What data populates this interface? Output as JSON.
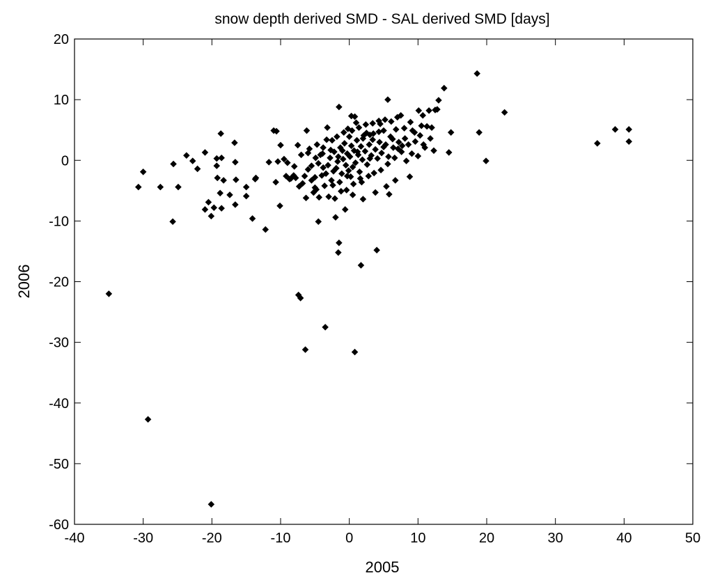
{
  "chart_data": {
    "type": "scatter",
    "title": "snow depth derived SMD - SAL derived SMD [days]",
    "xlabel": "2005",
    "ylabel": "2006",
    "xlim": [
      -40,
      50
    ],
    "ylim": [
      -60,
      20
    ],
    "x_ticks": [
      -40,
      -30,
      -20,
      -10,
      0,
      10,
      20,
      30,
      40,
      50
    ],
    "y_ticks": [
      -60,
      -50,
      -40,
      -30,
      -20,
      -10,
      0,
      10,
      20
    ],
    "x_tick_labels": [
      "-40",
      "-30",
      "-20",
      "-10",
      "0",
      "10",
      "20",
      "30",
      "40",
      "50"
    ],
    "y_tick_labels": [
      "-60",
      "-50",
      "-40",
      "-30",
      "-20",
      "-10",
      "0",
      "10",
      "20"
    ],
    "grid": false,
    "marker": "diamond",
    "marker_color": "#000000",
    "series": [
      {
        "points": [
          [
            -35,
            -22
          ],
          [
            -29.3,
            -42.7
          ],
          [
            -20.1,
            -56.7
          ],
          [
            -30.7,
            -4.4
          ],
          [
            -30,
            -1.9
          ],
          [
            -27.5,
            -4.4
          ],
          [
            -25.6,
            -0.6
          ],
          [
            -25.7,
            -10.1
          ],
          [
            -24.9,
            -4.4
          ],
          [
            -23.7,
            0.8
          ],
          [
            -22.8,
            -0.1
          ],
          [
            -22.1,
            -1.4
          ],
          [
            -21,
            1.3
          ],
          [
            -21,
            -8.1
          ],
          [
            -20.5,
            -6.9
          ],
          [
            -20.1,
            -9.2
          ],
          [
            -19.7,
            -7.8
          ],
          [
            -19.3,
            0.3
          ],
          [
            -19.3,
            -0.9
          ],
          [
            -19.2,
            -2.9
          ],
          [
            -18.8,
            -5.4
          ],
          [
            -18.7,
            4.4
          ],
          [
            -18.6,
            0.4
          ],
          [
            -18.6,
            -7.9
          ],
          [
            -18.3,
            -3.3
          ],
          [
            -17.4,
            -5.7
          ],
          [
            -16.7,
            2.9
          ],
          [
            -16.6,
            -0.3
          ],
          [
            -16.5,
            -3.2
          ],
          [
            -16.6,
            -7.3
          ],
          [
            -15,
            -4.4
          ],
          [
            -15,
            -5.9
          ],
          [
            -14.1,
            -9.6
          ],
          [
            -13.7,
            -3.1
          ],
          [
            -13.6,
            -2.9
          ],
          [
            -12.2,
            -11.4
          ],
          [
            -11.7,
            -0.3
          ],
          [
            -11,
            4.9
          ],
          [
            -10.6,
            4.8
          ],
          [
            -10.7,
            -3.6
          ],
          [
            -10.1,
            -7.5
          ],
          [
            -10,
            2.5
          ],
          [
            -10.4,
            -0.2
          ],
          [
            -9.5,
            0.2
          ],
          [
            -9,
            -0.4
          ],
          [
            -8.5,
            -3
          ],
          [
            -8.1,
            -2.5
          ],
          [
            -7.5,
            2.5
          ],
          [
            -7.3,
            -4.3
          ],
          [
            -7.4,
            -22.2
          ],
          [
            -7.1,
            -22.7
          ],
          [
            -6.5,
            -2.6
          ],
          [
            -6.2,
            4.9
          ],
          [
            -6.4,
            -31.2
          ],
          [
            -6.3,
            -6.2
          ],
          [
            -6,
            1.2
          ],
          [
            -5.5,
            -0.9
          ],
          [
            -5,
            -4.5
          ],
          [
            -4.5,
            -10.1
          ],
          [
            -4,
            -2.5
          ],
          [
            -3.8,
            2.1
          ],
          [
            -3.5,
            -27.5
          ],
          [
            -3.2,
            5.4
          ],
          [
            -3,
            -6
          ],
          [
            -2.5,
            3.3
          ],
          [
            -2.3,
            -1.8
          ],
          [
            -2,
            -9.4
          ],
          [
            -1.7,
            -0.2
          ],
          [
            -1.5,
            8.8
          ],
          [
            -1.5,
            -13.6
          ],
          [
            -1.6,
            -15.2
          ],
          [
            -1.2,
            -5.1
          ],
          [
            -1,
            1.6
          ],
          [
            -0.6,
            -8.1
          ],
          [
            -0.3,
            -2.6
          ],
          [
            0,
            3.9
          ],
          [
            0.3,
            7.3
          ],
          [
            0.8,
            -31.6
          ],
          [
            0.8,
            7.2
          ],
          [
            0.5,
            -5.7
          ],
          [
            1.2,
            1.4
          ],
          [
            1.7,
            -17.3
          ],
          [
            1.6,
            -3
          ],
          [
            2,
            -6.4
          ],
          [
            2.5,
            4.5
          ],
          [
            3,
            0.3
          ],
          [
            3.4,
            3.4
          ],
          [
            3.8,
            -5.3
          ],
          [
            4,
            -14.8
          ],
          [
            4.5,
            6
          ],
          [
            5,
            2.2
          ],
          [
            5.4,
            -4.3
          ],
          [
            5.6,
            10
          ],
          [
            5.8,
            -5.6
          ],
          [
            6.3,
            3.5
          ],
          [
            6.7,
            -3.3
          ],
          [
            7.1,
            1.9
          ],
          [
            7.5,
            7.4
          ],
          [
            8,
            5.3
          ],
          [
            8.3,
            -0.1
          ],
          [
            8.8,
            -2.7
          ],
          [
            9.5,
            4.6
          ],
          [
            10,
            0.7
          ],
          [
            10.1,
            8.2
          ],
          [
            10.5,
            5.7
          ],
          [
            11,
            2.1
          ],
          [
            11.6,
            8.2
          ],
          [
            12,
            5.4
          ],
          [
            12.5,
            8.3
          ],
          [
            13,
            9.9
          ],
          [
            13.8,
            11.9
          ],
          [
            14.5,
            1.3
          ],
          [
            14.8,
            4.6
          ],
          [
            18.6,
            14.3
          ],
          [
            18.9,
            4.6
          ],
          [
            19.9,
            -0.1
          ],
          [
            22.6,
            7.9
          ],
          [
            36.1,
            2.8
          ],
          [
            38.7,
            5.1
          ],
          [
            40.7,
            5.1
          ],
          [
            40.7,
            3.1
          ],
          [
            -6,
            -1.5
          ],
          [
            -5.5,
            -3.3
          ],
          [
            -5,
            -2.8
          ],
          [
            -4.5,
            -0.5
          ],
          [
            -4.2,
            0.9
          ],
          [
            -3.8,
            -1.2
          ],
          [
            -3.4,
            -2.2
          ],
          [
            -3.1,
            -0.8
          ],
          [
            -2.8,
            0.4
          ],
          [
            -2.6,
            -3.3
          ],
          [
            -2.2,
            1.4
          ],
          [
            -1.9,
            -1.3
          ],
          [
            -1.6,
            0.6
          ],
          [
            -1.3,
            2.1
          ],
          [
            -1.1,
            -2.2
          ],
          [
            -0.9,
            0.2
          ],
          [
            -0.7,
            2.8
          ],
          [
            -0.5,
            -0.8
          ],
          [
            -0.3,
            1.1
          ],
          [
            -0.1,
            -1.7
          ],
          [
            0.1,
            0.6
          ],
          [
            0.3,
            2.4
          ],
          [
            0.5,
            -1.1
          ],
          [
            0.7,
            1.6
          ],
          [
            0.9,
            -0.4
          ],
          [
            1.1,
            3.3
          ],
          [
            1.3,
            0.9
          ],
          [
            1.5,
            -1.9
          ],
          [
            1.7,
            2.3
          ],
          [
            1.9,
            0.1
          ],
          [
            2.1,
            4.1
          ],
          [
            2.3,
            1.5
          ],
          [
            2.6,
            -0.7
          ],
          [
            2.9,
            2.6
          ],
          [
            3.2,
            0.8
          ],
          [
            3.5,
            4.4
          ],
          [
            3.8,
            1.8
          ],
          [
            4.1,
            0.3
          ],
          [
            4.4,
            3
          ],
          [
            4.7,
            1.2
          ],
          [
            5,
            4.9
          ],
          [
            5.3,
            2.6
          ],
          [
            5.7,
            0.6
          ],
          [
            6,
            3.9
          ],
          [
            6.4,
            2.1
          ],
          [
            6.8,
            5.1
          ],
          [
            7.2,
            3
          ],
          [
            7.6,
            1.4
          ],
          [
            8.1,
            3.6
          ],
          [
            8.6,
            2.6
          ],
          [
            9.1,
            1.1
          ],
          [
            9.6,
            3.1
          ],
          [
            10.3,
            4.1
          ],
          [
            10.8,
            2.6
          ],
          [
            11.3,
            5.6
          ],
          [
            11.8,
            3.6
          ],
          [
            12.3,
            1.6
          ],
          [
            -8,
            -1
          ],
          [
            -7,
            0.9
          ],
          [
            -7.8,
            -2.9
          ],
          [
            -6.8,
            -3.8
          ],
          [
            -5.8,
            1.9
          ],
          [
            -5.2,
            -5.3
          ],
          [
            -4.8,
            -4.8
          ],
          [
            -4.4,
            -6.1
          ],
          [
            -4.7,
            2.6
          ],
          [
            -3.6,
            -4.2
          ],
          [
            -3.3,
            3.4
          ],
          [
            -2.4,
            -4.1
          ],
          [
            -1.8,
            3.9
          ],
          [
            -0.8,
            4.6
          ],
          [
            0.4,
            4.9
          ],
          [
            1.4,
            5.4
          ],
          [
            2.4,
            5.9
          ],
          [
            3.4,
            6.1
          ],
          [
            4.3,
            6.5
          ],
          [
            5.2,
            6.7
          ],
          [
            6.1,
            6.4
          ],
          [
            7,
            7.1
          ],
          [
            8.9,
            6.3
          ],
          [
            10.7,
            7.4
          ],
          [
            12.8,
            8.4
          ],
          [
            -2.1,
            -6.3
          ],
          [
            -0.4,
            -4.9
          ],
          [
            0.6,
            -3.9
          ],
          [
            1.8,
            -3.6
          ],
          [
            2.8,
            -2.6
          ],
          [
            3.6,
            -2.1
          ],
          [
            4.6,
            -1.6
          ],
          [
            5.6,
            -0.6
          ],
          [
            6.6,
            0.4
          ],
          [
            7.7,
            2.4
          ],
          [
            9.2,
            4.9
          ],
          [
            -9.2,
            -2.6
          ],
          [
            -8.7,
            -3.1
          ],
          [
            -0.2,
            5.2
          ],
          [
            1,
            6.2
          ],
          [
            2,
            3.6
          ],
          [
            3,
            4.2
          ],
          [
            4.3,
            4.7
          ],
          [
            0.2,
            -2.7
          ],
          [
            -1.4,
            -3.6
          ],
          [
            -2.7,
            1.7
          ],
          [
            -3.9,
            1.1
          ],
          [
            -4.9,
            0.4
          ]
        ]
      }
    ]
  }
}
